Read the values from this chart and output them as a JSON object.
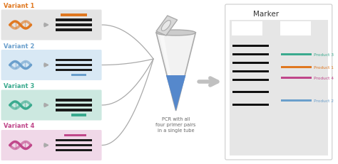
{
  "bg_color": "#ffffff",
  "variants": [
    {
      "name": "Variant 1",
      "color": "#e07820",
      "bg": "#e4e4e4",
      "dna_color": "#e07820",
      "band_color": "#e07820"
    },
    {
      "name": "Variant 2",
      "color": "#6a9fcc",
      "bg": "#d8e8f4",
      "dna_color": "#6a9fcc",
      "band_color": "#6a9fcc"
    },
    {
      "name": "Variant 3",
      "color": "#3aaa8e",
      "bg": "#cce8e0",
      "dna_color": "#3aaa8e",
      "band_color": "#3aaa8e"
    },
    {
      "name": "Variant 4",
      "color": "#c0478a",
      "bg": "#f0d8e8",
      "dna_color": "#c0478a",
      "band_color": "#c0478a"
    }
  ],
  "products": [
    {
      "name": "Product 3",
      "color": "#3aaa8e"
    },
    {
      "name": "Product 1",
      "color": "#e07820"
    },
    {
      "name": "Product 4",
      "color": "#c0478a"
    },
    {
      "name": "Product 2",
      "color": "#6a9fcc"
    }
  ],
  "pcr_label": "PCR with all\nfour primer pairs\nin a single tube",
  "marker_title": "Marker"
}
